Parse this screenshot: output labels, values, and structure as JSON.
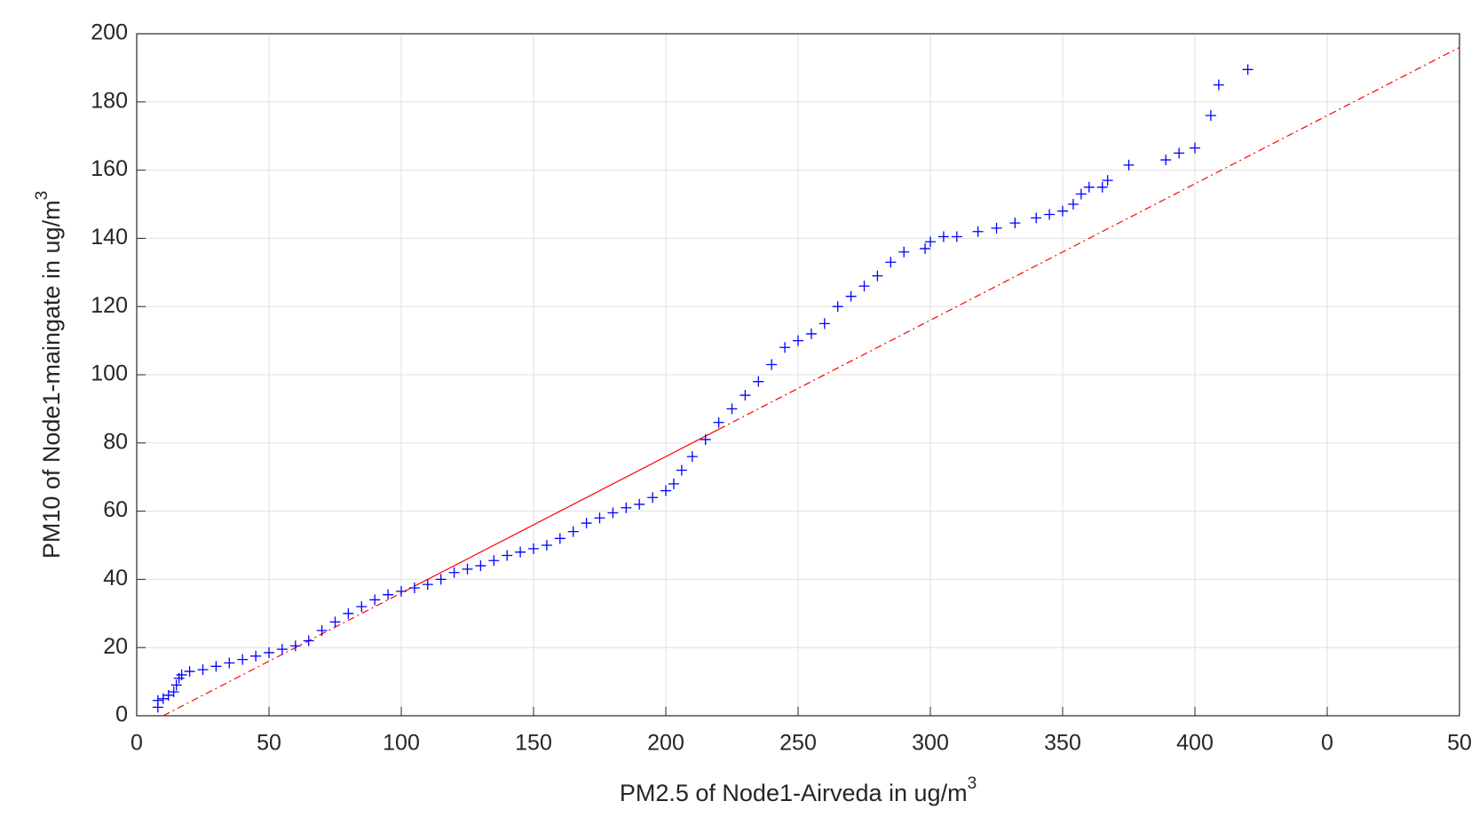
{
  "chart_data": {
    "type": "scatter",
    "xlabel": {
      "text": "PM2.5 of Node1-Airveda in ug/m",
      "sup": "3"
    },
    "ylabel": {
      "text": "PM10 of Node1-maingate in ug/m",
      "sup": "3"
    },
    "xlim": [
      0,
      500
    ],
    "ylim": [
      0,
      200
    ],
    "xticks": [
      0,
      50,
      100,
      150,
      200,
      250,
      300,
      350,
      400,
      {
        "value": 450,
        "label": "0"
      },
      {
        "value": 500,
        "label": "50"
      }
    ],
    "yticks": [
      0,
      20,
      40,
      60,
      80,
      100,
      120,
      140,
      160,
      180,
      200
    ],
    "grid": true,
    "series": [
      {
        "color": "#0000ff",
        "marker": "+",
        "x": [
          8,
          8,
          10,
          12,
          14,
          15,
          16,
          17,
          20,
          25,
          30,
          35,
          40,
          45,
          50,
          55,
          60,
          65,
          70,
          75,
          80,
          85,
          90,
          95,
          100,
          105,
          110,
          115,
          120,
          125,
          130,
          135,
          140,
          145,
          150,
          155,
          160,
          165,
          170,
          175,
          180,
          185,
          190,
          195,
          200,
          203,
          206,
          210,
          215,
          220,
          225,
          230,
          235,
          240,
          245,
          250,
          255,
          260,
          265,
          270,
          275,
          280,
          285,
          290,
          298,
          300,
          305,
          310,
          318,
          325,
          332,
          340,
          345,
          350,
          354,
          357,
          360,
          365,
          367,
          375,
          389,
          394,
          400,
          406,
          409,
          420
        ],
        "values": [
          2.5,
          4.5,
          5,
          6,
          7,
          9,
          11,
          12,
          13,
          13.5,
          14.5,
          15.5,
          16.5,
          17.5,
          18.5,
          19.5,
          20.5,
          22,
          25,
          27.5,
          30,
          32,
          34,
          35.5,
          36.5,
          37.5,
          38.5,
          40,
          42,
          43,
          44,
          45.5,
          47,
          48,
          49,
          50,
          52,
          54,
          56.5,
          58,
          59.5,
          61,
          62,
          64,
          66,
          68,
          72,
          76,
          81,
          86,
          90,
          94,
          98,
          103,
          108,
          110,
          112,
          115,
          120,
          123,
          126,
          129,
          133,
          136,
          137,
          139,
          140.5,
          140.5,
          142,
          143,
          144.5,
          146,
          147,
          148,
          150,
          153,
          155,
          155,
          157,
          161.5,
          163,
          165,
          166.5,
          176,
          185,
          189.5
        ]
      }
    ],
    "reference_line": {
      "color": "#ff0000",
      "x": [
        10,
        105,
        220,
        500
      ],
      "values": [
        0,
        38,
        84,
        196
      ]
    }
  }
}
